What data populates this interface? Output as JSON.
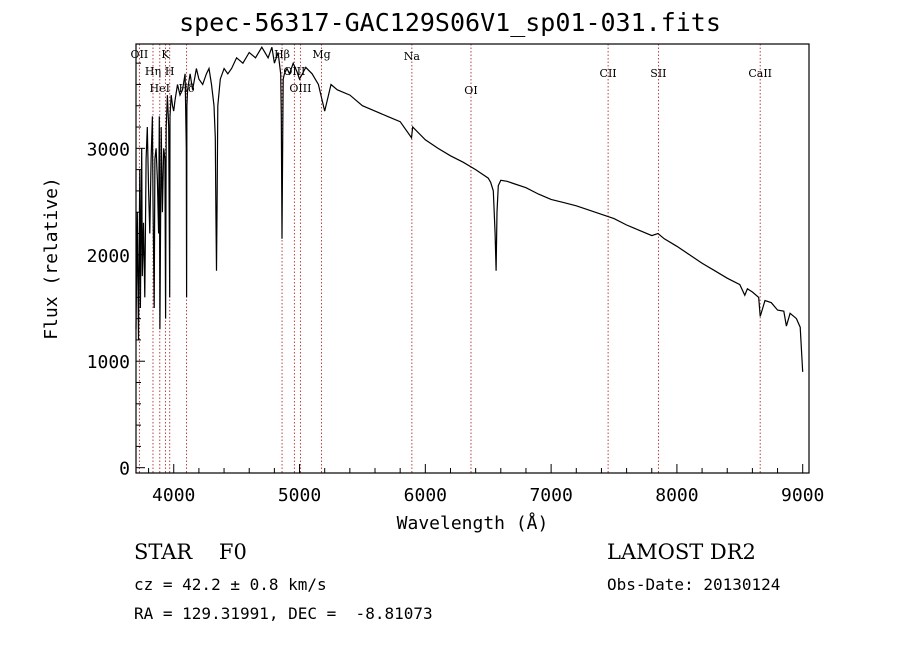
{
  "chart_data": {
    "type": "line",
    "title": "spec-56317-GAC129S06V1_sp01-031.fits",
    "xlabel": "Wavelength (Å)",
    "ylabel": "Flux (relative)",
    "xlim": [
      3700,
      9050
    ],
    "ylim": [
      -50,
      3980
    ],
    "xticks": [
      4000,
      5000,
      6000,
      7000,
      8000,
      9000
    ],
    "xtick_labels": [
      "4000",
      "5000",
      "6000",
      "7000",
      "8000",
      "9000"
    ],
    "yticks": [
      0,
      1000,
      2000,
      3000
    ],
    "ytick_labels": [
      "0",
      "1000",
      "2000",
      "3000"
    ],
    "series": [
      {
        "x": [
          3700,
          3710,
          3720,
          3730,
          3735,
          3745,
          3750,
          3760,
          3770,
          3780,
          3790,
          3800,
          3810,
          3820,
          3830,
          3835,
          3845,
          3850,
          3860,
          3870,
          3880,
          3885,
          3890,
          3900,
          3910,
          3920,
          3930,
          3935,
          3940,
          3950,
          3960,
          3968,
          3970,
          3980,
          3990,
          4000,
          4010,
          4030,
          4050,
          4070,
          4090,
          4100,
          4102,
          4105,
          4110,
          4130,
          4150,
          4180,
          4200,
          4230,
          4260,
          4280,
          4300,
          4320,
          4330,
          4335,
          4340,
          4345,
          4350,
          4370,
          4400,
          4430,
          4460,
          4500,
          4550,
          4600,
          4650,
          4700,
          4750,
          4780,
          4800,
          4830,
          4850,
          4855,
          4861,
          4867,
          4870,
          4880,
          4900,
          4920,
          4950,
          4980,
          5000,
          5050,
          5100,
          5150,
          5200,
          5250,
          5300,
          5400,
          5500,
          5600,
          5700,
          5800,
          5890,
          5900,
          6000,
          6100,
          6200,
          6300,
          6400,
          6450,
          6500,
          6520,
          6540,
          6555,
          6563,
          6570,
          6580,
          6600,
          6650,
          6700,
          6800,
          6900,
          7000,
          7100,
          7200,
          7300,
          7400,
          7500,
          7600,
          7700,
          7800,
          7850,
          7900,
          8000,
          8100,
          8200,
          8300,
          8400,
          8500,
          8540,
          8560,
          8600,
          8650,
          8662,
          8700,
          8750,
          8800,
          8850,
          8870,
          8900,
          8950,
          8980,
          8990,
          9000
        ],
        "y": [
          1300,
          2400,
          1200,
          2800,
          1500,
          3000,
          1800,
          2300,
          1600,
          2900,
          3200,
          2600,
          2200,
          2900,
          3300,
          2500,
          1500,
          2900,
          3000,
          2700,
          2200,
          3300,
          1300,
          3200,
          2400,
          3000,
          2900,
          1400,
          3200,
          3500,
          3200,
          1600,
          3300,
          3500,
          3400,
          3350,
          3450,
          3600,
          3500,
          3550,
          3700,
          3000,
          1600,
          3400,
          3550,
          3700,
          3550,
          3750,
          3650,
          3600,
          3700,
          3750,
          3600,
          3400,
          3100,
          2400,
          1850,
          2500,
          3400,
          3650,
          3750,
          3700,
          3750,
          3850,
          3800,
          3900,
          3850,
          3950,
          3850,
          3950,
          3800,
          3900,
          3700,
          3300,
          2150,
          3200,
          3650,
          3700,
          3750,
          3700,
          3800,
          3720,
          3650,
          3760,
          3700,
          3600,
          3350,
          3600,
          3550,
          3500,
          3400,
          3350,
          3300,
          3250,
          3100,
          3200,
          3080,
          3000,
          2930,
          2870,
          2800,
          2760,
          2720,
          2680,
          2600,
          2200,
          1850,
          2400,
          2650,
          2700,
          2690,
          2670,
          2630,
          2570,
          2520,
          2490,
          2460,
          2420,
          2380,
          2340,
          2280,
          2230,
          2180,
          2200,
          2150,
          2080,
          2000,
          1920,
          1850,
          1780,
          1720,
          1620,
          1680,
          1650,
          1600,
          1420,
          1570,
          1550,
          1480,
          1470,
          1330,
          1450,
          1400,
          1320,
          1100,
          900
        ]
      }
    ],
    "line_markers": [
      {
        "x": 3727,
        "label": "OII"
      },
      {
        "x": 3835,
        "label": "Hη"
      },
      {
        "x": 3889,
        "label": "HeI"
      },
      {
        "x": 3934,
        "label": "K"
      },
      {
        "x": 3968,
        "label": "H"
      },
      {
        "x": 4102,
        "label": "Hδ"
      },
      {
        "x": 4861,
        "label": "Hβ"
      },
      {
        "x": 4959,
        "label": "OIII"
      },
      {
        "x": 5007,
        "label": "OIII"
      },
      {
        "x": 5175,
        "label": "Mg"
      },
      {
        "x": 5893,
        "label": "Na"
      },
      {
        "x": 6363,
        "label": "OI"
      },
      {
        "x": 7453,
        "label": "CII"
      },
      {
        "x": 7853,
        "label": "SII"
      },
      {
        "x": 8662,
        "label": "CaII"
      }
    ],
    "grid": false
  },
  "info": {
    "class_line": "STAR    F0",
    "survey": "LAMOST DR2",
    "cz_line": "cz = 42.2 ± 0.8 km/s",
    "obs_date_line": "Obs-Date: 20130124",
    "radec_line": "RA = 129.31991, DEC =  -8.81073"
  },
  "colors": {
    "line": "#000000",
    "marker": "#b03030",
    "background": "#ffffff"
  }
}
